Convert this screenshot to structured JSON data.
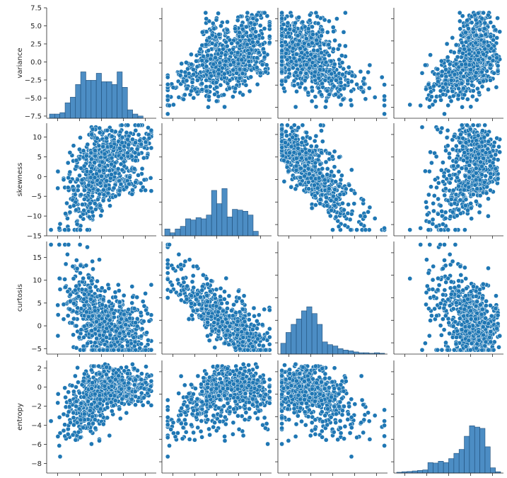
{
  "chart_data": {
    "type": "scatter",
    "kind": "pairplot",
    "title": "",
    "variables": [
      "variance",
      "skewness",
      "curtosis",
      "entropy"
    ],
    "point_color": "#1f77b4",
    "point_edge_color": "#ffffff",
    "hist_color": "#4c8dc4",
    "hist_edge_color": "#1f4e79",
    "axes": {
      "variance": {
        "range": [
          -7.8,
          7.5
        ],
        "ticks": [
          -7.5,
          -5.0,
          -2.5,
          0.0,
          2.5,
          5.0,
          7.5
        ],
        "tick_labels": [
          "−7.5",
          "−5.0",
          "−2.5",
          "0.0",
          "2.5",
          "5.0",
          "7.5"
        ]
      },
      "skewness": {
        "range": [
          -15,
          13.5
        ],
        "ticks": [
          -15,
          -10,
          -5,
          0,
          5,
          10
        ],
        "tick_labels": [
          "−15",
          "−10",
          "−5",
          "0",
          "5",
          "10"
        ]
      },
      "curtosis": {
        "range": [
          -6.2,
          18.5
        ],
        "ticks": [
          -5,
          0,
          5,
          10,
          15
        ],
        "tick_labels": [
          "−5",
          "0",
          "5",
          "10",
          "15"
        ]
      },
      "entropy": {
        "range": [
          -9.0,
          2.8
        ],
        "ticks": [
          -8,
          -6,
          -4,
          -2,
          0,
          2
        ],
        "tick_labels": [
          "−8",
          "−6",
          "−4",
          "−2",
          "0",
          "2"
        ]
      }
    },
    "histograms": {
      "variance": {
        "bins": 20,
        "counts": [
          15,
          15,
          20,
          55,
          75,
          120,
          165,
          135,
          135,
          160,
          130,
          130,
          120,
          165,
          110,
          30,
          15,
          8,
          0,
          0
        ]
      },
      "skewness": {
        "bins": 20,
        "counts": [
          18,
          8,
          18,
          25,
          45,
          42,
          48,
          45,
          55,
          120,
          85,
          125,
          50,
          70,
          68,
          65,
          55,
          12,
          0,
          0
        ]
      },
      "curtosis": {
        "bins": 20,
        "counts": [
          40,
          80,
          110,
          130,
          160,
          175,
          150,
          110,
          45,
          35,
          30,
          20,
          15,
          12,
          8,
          5,
          5,
          3,
          5,
          3
        ]
      },
      "entropy": {
        "bins": 20,
        "counts": [
          3,
          5,
          6,
          8,
          10,
          12,
          40,
          38,
          45,
          40,
          55,
          75,
          90,
          140,
          180,
          175,
          170,
          100,
          20,
          5
        ]
      }
    },
    "grid": false,
    "legend": "none",
    "n_points": 1372
  }
}
